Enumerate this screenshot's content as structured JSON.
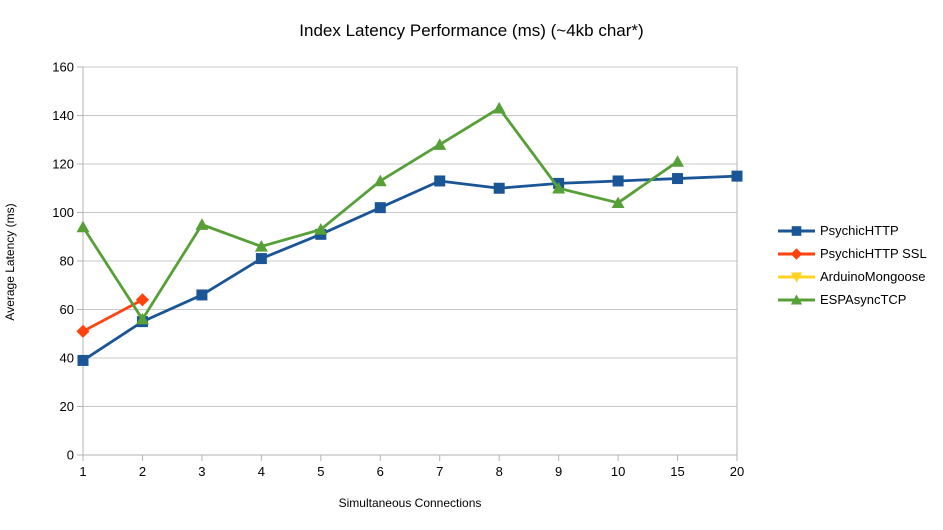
{
  "chart_data": {
    "type": "line",
    "title": "Index Latency Performance (ms) (~4kb char*)",
    "xlabel": "Simultaneous Connections",
    "ylabel": "Average Latency (ms)",
    "categories": [
      "1",
      "2",
      "3",
      "4",
      "5",
      "6",
      "7",
      "8",
      "9",
      "10",
      "15",
      "20"
    ],
    "y_ticks": [
      0,
      20,
      40,
      60,
      80,
      100,
      120,
      140,
      160
    ],
    "ylim": [
      0,
      160
    ],
    "grid": "horizontal-only",
    "legend_position": "right",
    "series": [
      {
        "name": "PsychicHTTP",
        "color": "#1a5596",
        "marker": "square",
        "values": [
          39,
          55,
          66,
          81,
          91,
          102,
          113,
          110,
          112,
          113,
          114,
          115
        ]
      },
      {
        "name": "PsychicHTTP SSL",
        "color": "#ff420e",
        "marker": "diamond",
        "values": [
          51,
          64,
          null,
          null,
          null,
          null,
          null,
          null,
          null,
          null,
          null,
          null
        ]
      },
      {
        "name": "ArduinoMongoose",
        "color": "#ffd320",
        "marker": "triangle-down",
        "values": [
          null,
          null,
          null,
          null,
          null,
          null,
          null,
          null,
          null,
          null,
          null,
          null
        ]
      },
      {
        "name": "ESPAsyncTCP",
        "color": "#57a038",
        "marker": "triangle-up",
        "values": [
          94,
          56,
          95,
          86,
          93,
          113,
          128,
          143,
          110,
          104,
          121,
          null
        ]
      }
    ],
    "style": {
      "gridline_color": "#c8c8c8",
      "axis_color": "#b3b3b3",
      "text_color": "#000000",
      "background": "#ffffff"
    }
  }
}
